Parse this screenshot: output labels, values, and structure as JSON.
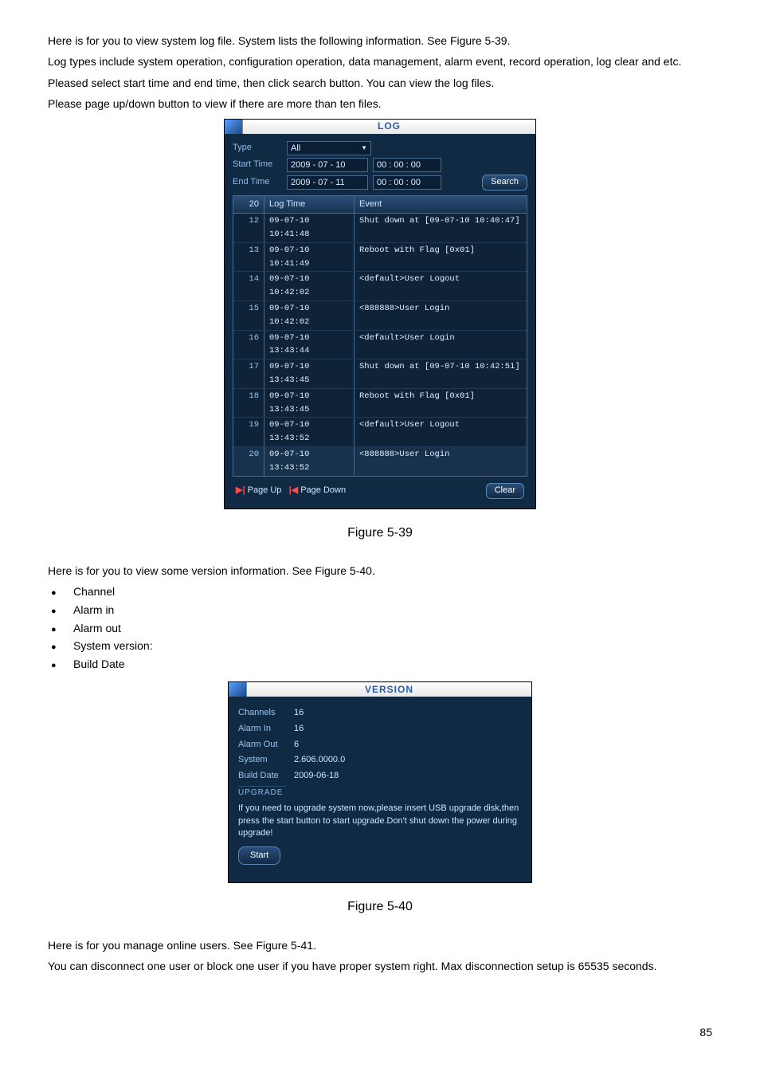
{
  "intro": {
    "p1": "Here is for you to view system log file. System lists the following information. See Figure 5-39.",
    "p2": "Log types include system operation, configuration operation, data management, alarm event, record operation, log clear and etc.",
    "p3": "Pleased select start time and end time, then click search button. You can view the log files.",
    "p4": "Please page up/down button to view if there are more than ten files."
  },
  "log_panel": {
    "title": "LOG",
    "type_label": "Type",
    "type_value": "All",
    "start_label": "Start Time",
    "start_date": "2009 - 07 - 10",
    "start_time": "00 : 00 : 00",
    "end_label": "End Time",
    "end_date": "2009 - 07 - 11",
    "end_time": "00 : 00 : 00",
    "search_btn": "Search",
    "head_count": "20",
    "head_time": "Log Time",
    "head_event": "Event",
    "rows": [
      {
        "n": "12",
        "t": "09-07-10 10:41:48",
        "e": "Shut down at [09-07-10 10:40:47]"
      },
      {
        "n": "13",
        "t": "09-07-10 10:41:49",
        "e": "Reboot with Flag [0x01]"
      },
      {
        "n": "14",
        "t": "09-07-10 10:42:02",
        "e": "<default>User Logout"
      },
      {
        "n": "15",
        "t": "09-07-10 10:42:02",
        "e": "<888888>User Login"
      },
      {
        "n": "16",
        "t": "09-07-10 13:43:44",
        "e": "<default>User Login"
      },
      {
        "n": "17",
        "t": "09-07-10 13:43:45",
        "e": "Shut down at [09-07-10 10:42:51]"
      },
      {
        "n": "18",
        "t": "09-07-10 13:43:45",
        "e": "Reboot with Flag [0x01]"
      },
      {
        "n": "19",
        "t": "09-07-10 13:43:52",
        "e": "<default>User Logout"
      },
      {
        "n": "20",
        "t": "09-07-10 13:43:52",
        "e": "<888888>User Login"
      }
    ],
    "page_up": "Page Up",
    "page_down": "Page Down",
    "clear_btn": "Clear"
  },
  "caption1": "Figure 5-39",
  "ver_intro": "Here is for you to view some version information. See Figure 5-40.",
  "ver_bullets": [
    "Channel",
    "Alarm in",
    "Alarm out",
    "System version:",
    "Build Date"
  ],
  "ver_panel": {
    "title": "VERSION",
    "kv": [
      {
        "k": "Channels",
        "v": "16"
      },
      {
        "k": "Alarm In",
        "v": "16"
      },
      {
        "k": "Alarm Out",
        "v": "6"
      },
      {
        "k": "System",
        "v": "2.606.0000.0"
      },
      {
        "k": "Build Date",
        "v": "2009-06-18"
      }
    ],
    "upg_label": "UPGRADE",
    "upg_text": "If you need to upgrade system now,please insert USB upgrade disk,then press the start button to start upgrade.Don't shut down the power during upgrade!",
    "start_btn": "Start"
  },
  "caption2": "Figure 5-40",
  "online": {
    "p1": "Here is for you manage online users. See Figure 5-41.",
    "p2": "You can disconnect one user or block one user if you have proper system right. Max disconnection setup is 65535 seconds."
  },
  "page_num": "85"
}
